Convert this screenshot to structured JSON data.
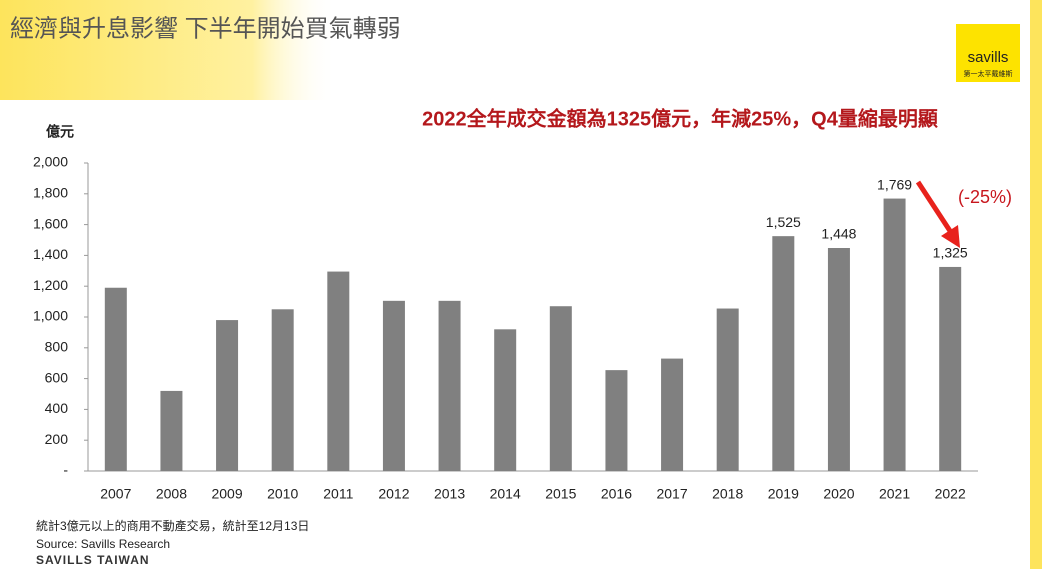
{
  "slide": {
    "title": "經濟與升息影響 下半年開始買氣轉弱",
    "footnote": "統計3億元以上的商用不動產交易，統計至12月13日",
    "source": "Source: Savills Research",
    "footer": "SAVILLS TAIWAN",
    "logo": {
      "name": "savills",
      "tagline": "第一太平戴維斯"
    }
  },
  "chart_data": {
    "type": "bar",
    "subtitle": "2022全年成交金額為1325億元，年減25%，Q4量縮最明顯",
    "y_label": "億元",
    "annotation": "(-25%)",
    "categories": [
      "2007",
      "2008",
      "2009",
      "2010",
      "2011",
      "2012",
      "2013",
      "2014",
      "2015",
      "2016",
      "2017",
      "2018",
      "2019",
      "2020",
      "2021",
      "2022"
    ],
    "values": [
      1190,
      520,
      980,
      1050,
      1295,
      1105,
      1105,
      920,
      1070,
      655,
      730,
      1055,
      1525,
      1448,
      1769,
      1325
    ],
    "value_labels": [
      null,
      null,
      null,
      null,
      null,
      null,
      null,
      null,
      null,
      null,
      null,
      null,
      "1,525",
      "1,448",
      "1,769",
      "1,325"
    ],
    "color": "#808080",
    "ylim": [
      0,
      2000
    ],
    "yticks": [
      {
        "value": 0,
        "label": "-"
      },
      200,
      400,
      600,
      800,
      {
        "value": 1000,
        "label": "1,000"
      },
      {
        "value": 1200,
        "label": "1,200"
      },
      {
        "value": 1400,
        "label": "1,400"
      },
      {
        "value": 1600,
        "label": "1,600"
      },
      {
        "value": 1800,
        "label": "1,800"
      },
      {
        "value": 2000,
        "label": "2,000"
      }
    ],
    "grid": false
  }
}
